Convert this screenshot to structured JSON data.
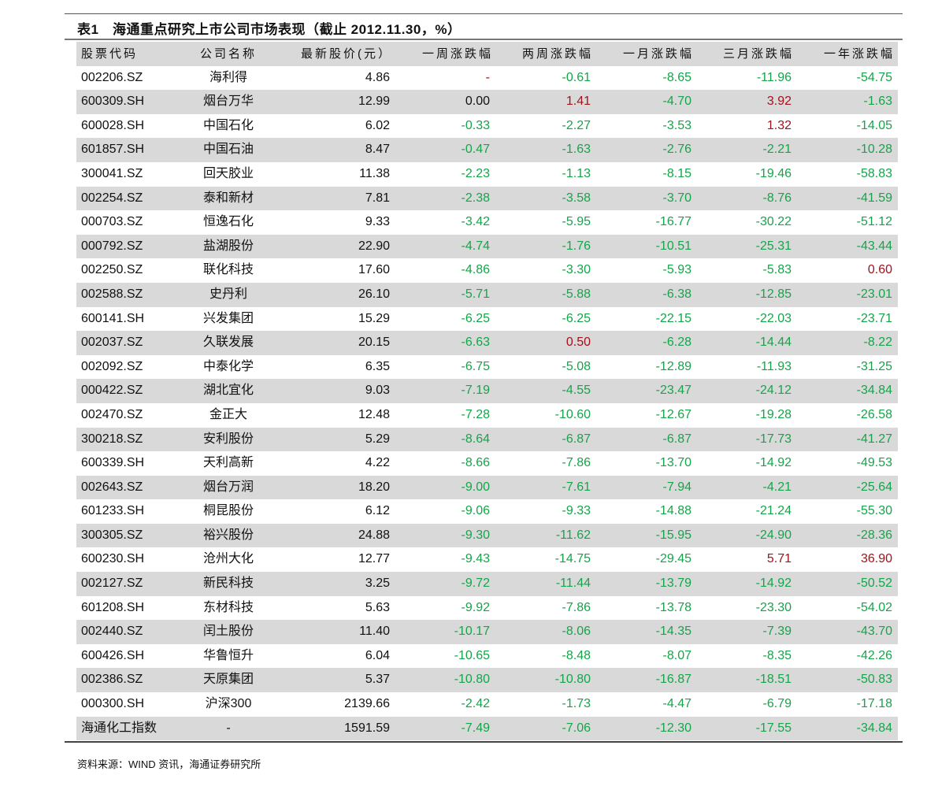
{
  "title": "表1　海通重点研究上市公司市场表现（截止 2012.11.30，%）",
  "colors": {
    "positive": "#a0121c",
    "negative": "#16a44a",
    "neutral": "#111111",
    "row_stripe": "#d9d9d9"
  },
  "headers": [
    "股票代码",
    "公司名称",
    "最新股价(元）",
    "一周涨跌幅",
    "两周涨跌幅",
    "一月涨跌幅",
    "三月涨跌幅",
    "一年涨跌幅"
  ],
  "rows": [
    [
      "002206.SZ",
      "海利得",
      "4.86",
      "-",
      "-0.61",
      "-8.65",
      "-11.96",
      "-54.75"
    ],
    [
      "600309.SH",
      "烟台万华",
      "12.99",
      "0.00",
      "1.41",
      "-4.70",
      "3.92",
      "-1.63"
    ],
    [
      "600028.SH",
      "中国石化",
      "6.02",
      "-0.33",
      "-2.27",
      "-3.53",
      "1.32",
      "-14.05"
    ],
    [
      "601857.SH",
      "中国石油",
      "8.47",
      "-0.47",
      "-1.63",
      "-2.76",
      "-2.21",
      "-10.28"
    ],
    [
      "300041.SZ",
      "回天胶业",
      "11.38",
      "-2.23",
      "-1.13",
      "-8.15",
      "-19.46",
      "-58.83"
    ],
    [
      "002254.SZ",
      "泰和新材",
      "7.81",
      "-2.38",
      "-3.58",
      "-3.70",
      "-8.76",
      "-41.59"
    ],
    [
      "000703.SZ",
      "恒逸石化",
      "9.33",
      "-3.42",
      "-5.95",
      "-16.77",
      "-30.22",
      "-51.12"
    ],
    [
      "000792.SZ",
      "盐湖股份",
      "22.90",
      "-4.74",
      "-1.76",
      "-10.51",
      "-25.31",
      "-43.44"
    ],
    [
      "002250.SZ",
      "联化科技",
      "17.60",
      "-4.86",
      "-3.30",
      "-5.93",
      "-5.83",
      "0.60"
    ],
    [
      "002588.SZ",
      "史丹利",
      "26.10",
      "-5.71",
      "-5.88",
      "-6.38",
      "-12.85",
      "-23.01"
    ],
    [
      "600141.SH",
      "兴发集团",
      "15.29",
      "-6.25",
      "-6.25",
      "-22.15",
      "-22.03",
      "-23.71"
    ],
    [
      "002037.SZ",
      "久联发展",
      "20.15",
      "-6.63",
      "0.50",
      "-6.28",
      "-14.44",
      "-8.22"
    ],
    [
      "002092.SZ",
      "中泰化学",
      "6.35",
      "-6.75",
      "-5.08",
      "-12.89",
      "-11.93",
      "-31.25"
    ],
    [
      "000422.SZ",
      "湖北宜化",
      "9.03",
      "-7.19",
      "-4.55",
      "-23.47",
      "-24.12",
      "-34.84"
    ],
    [
      "002470.SZ",
      "金正大",
      "12.48",
      "-7.28",
      "-10.60",
      "-12.67",
      "-19.28",
      "-26.58"
    ],
    [
      "300218.SZ",
      "安利股份",
      "5.29",
      "-8.64",
      "-6.87",
      "-6.87",
      "-17.73",
      "-41.27"
    ],
    [
      "600339.SH",
      "天利高新",
      "4.22",
      "-8.66",
      "-7.86",
      "-13.70",
      "-14.92",
      "-49.53"
    ],
    [
      "002643.SZ",
      "烟台万润",
      "18.20",
      "-9.00",
      "-7.61",
      "-7.94",
      "-4.21",
      "-25.64"
    ],
    [
      "601233.SH",
      "桐昆股份",
      "6.12",
      "-9.06",
      "-9.33",
      "-14.88",
      "-21.24",
      "-55.30"
    ],
    [
      "300305.SZ",
      "裕兴股份",
      "24.88",
      "-9.30",
      "-11.62",
      "-15.95",
      "-24.90",
      "-28.36"
    ],
    [
      "600230.SH",
      "沧州大化",
      "12.77",
      "-9.43",
      "-14.75",
      "-29.45",
      "5.71",
      "36.90"
    ],
    [
      "002127.SZ",
      "新民科技",
      "3.25",
      "-9.72",
      "-11.44",
      "-13.79",
      "-14.92",
      "-50.52"
    ],
    [
      "601208.SH",
      "东材科技",
      "5.63",
      "-9.92",
      "-7.86",
      "-13.78",
      "-23.30",
      "-54.02"
    ],
    [
      "002440.SZ",
      "闰土股份",
      "11.40",
      "-10.17",
      "-8.06",
      "-14.35",
      "-7.39",
      "-43.70"
    ],
    [
      "600426.SH",
      "华鲁恒升",
      "6.04",
      "-10.65",
      "-8.48",
      "-8.07",
      "-8.35",
      "-42.26"
    ],
    [
      "002386.SZ",
      "天原集团",
      "5.37",
      "-10.80",
      "-10.80",
      "-16.87",
      "-18.51",
      "-50.83"
    ],
    [
      "000300.SH",
      "沪深300",
      "2139.66",
      "-2.42",
      "-1.73",
      "-4.47",
      "-6.79",
      "-17.18"
    ],
    [
      "海通化工指数",
      "-",
      "1591.59",
      "-7.49",
      "-7.06",
      "-12.30",
      "-17.55",
      "-34.84"
    ]
  ],
  "footer": "资料来源：WIND 资讯，海通证券研究所"
}
